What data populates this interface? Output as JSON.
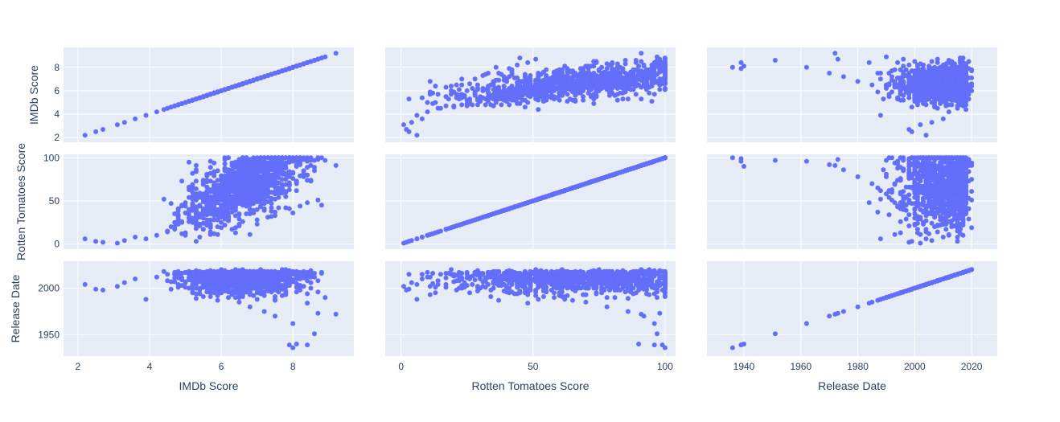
{
  "chart_data": {
    "type": "scatter",
    "style": {
      "plot_bg": "#e5ecf6",
      "grid_color": "#ffffff",
      "marker_color": "#636efa",
      "text_color": "#2a3f5f",
      "grid": true
    },
    "dimensions": [
      {
        "key": "imdb",
        "label": "IMDb Score",
        "range": [
          1.6,
          9.7
        ],
        "ticks_x": [
          2,
          4,
          6,
          8
        ],
        "ticks_y": [
          2,
          4,
          6,
          8
        ]
      },
      {
        "key": "rt",
        "label": "Rotten Tomatoes Score",
        "range": [
          -6,
          104
        ],
        "ticks_x": [
          0,
          50,
          100
        ],
        "ticks_y": [
          0,
          50,
          100
        ]
      },
      {
        "key": "year",
        "label": "Release Date",
        "range": [
          1927,
          2029
        ],
        "ticks_x": [
          1940,
          1960,
          1980,
          2000,
          2020
        ],
        "ticks_y": [
          1950,
          2000
        ]
      }
    ],
    "points_sample": {
      "description_units": "imdb score, rotten tomatoes %, release year",
      "imdb": [
        2.2,
        2.5,
        2.7,
        3.1,
        3.3,
        3.6,
        3.9,
        4.2,
        4.5,
        4.7,
        4.9,
        5.1,
        5.3,
        5.5,
        5.7,
        5.9,
        6.0,
        6.1,
        6.2,
        6.3,
        6.4,
        6.5,
        6.6,
        6.7,
        6.8,
        6.9,
        7.0,
        7.1,
        7.2,
        7.3,
        7.4,
        7.5,
        7.6,
        7.7,
        7.8,
        7.9,
        8.0,
        8.1,
        8.2,
        8.3,
        8.4,
        8.5,
        8.7,
        8.9,
        9.2,
        8.0,
        7.9,
        8.1,
        8.6,
        8.4
      ],
      "rt": [
        6,
        3,
        2,
        1,
        4,
        8,
        6,
        10,
        14,
        20,
        25,
        30,
        35,
        40,
        45,
        50,
        55,
        60,
        58,
        62,
        66,
        70,
        72,
        75,
        78,
        80,
        82,
        84,
        86,
        88,
        90,
        92,
        91,
        93,
        94,
        95,
        96,
        97,
        95,
        98,
        96,
        97,
        98,
        97,
        91,
        100,
        96,
        90,
        97,
        99
      ],
      "year": [
        2004,
        1999,
        1998,
        2002,
        2006,
        2010,
        1988,
        2012,
        2008,
        2015,
        2003,
        2011,
        2000,
        2017,
        1995,
        2009,
        2013,
        2005,
        1990,
        2016,
        2001,
        1985,
        2014,
        2007,
        1980,
        2018,
        1998,
        2019,
        1975,
        2010,
        2012,
        1970,
        2006,
        2015,
        2020,
        2003,
        1962,
        1996,
        2017,
        2011,
        1994,
        2000,
        1973,
        1990,
        1972,
        1936,
        1939,
        1940,
        1951,
        1939
      ]
    }
  }
}
